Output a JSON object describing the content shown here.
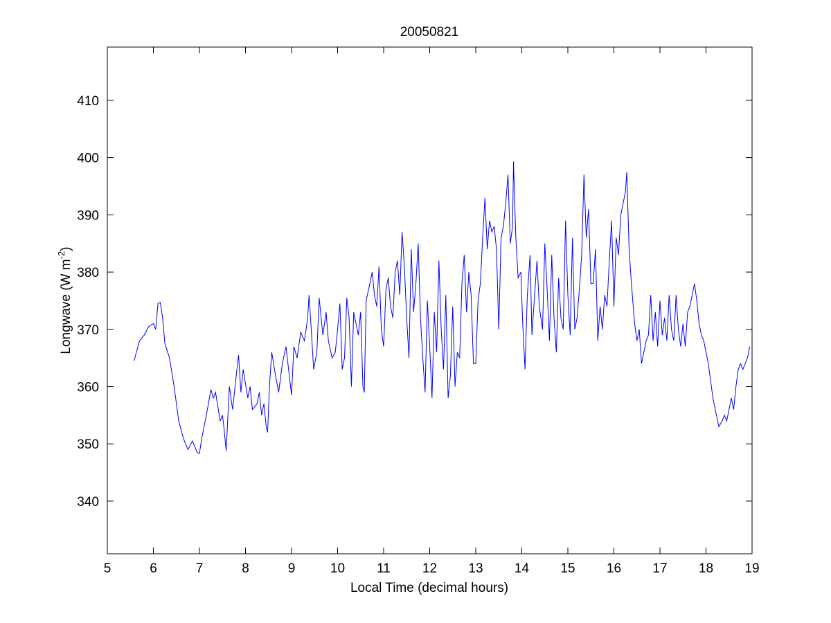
{
  "chart_data": {
    "type": "line",
    "title": "20050821",
    "xlabel": "Local Time (decimal hours)",
    "ylabel_parts": [
      "Longwave (W m",
      "-2",
      ")"
    ],
    "xlim": [
      5,
      19
    ],
    "xticks": [
      5,
      6,
      7,
      8,
      9,
      10,
      11,
      12,
      13,
      14,
      15,
      16,
      17,
      18,
      19
    ],
    "ylim": [
      330.8,
      419.3
    ],
    "yticks": [
      340,
      350,
      360,
      370,
      380,
      390,
      400,
      410
    ],
    "series": [
      {
        "name": "Longwave",
        "color": "#0000ff",
        "x": [
          5.58,
          5.7,
          5.8,
          5.9,
          6.0,
          6.05,
          6.1,
          6.15,
          6.2,
          6.25,
          6.35,
          6.45,
          6.55,
          6.65,
          6.75,
          6.85,
          6.95,
          7.0,
          7.05,
          7.15,
          7.25,
          7.3,
          7.35,
          7.45,
          7.5,
          7.53,
          7.58,
          7.65,
          7.72,
          7.8,
          7.85,
          7.9,
          7.95,
          8.05,
          8.1,
          8.15,
          8.25,
          8.3,
          8.35,
          8.4,
          8.45,
          8.48,
          8.52,
          8.57,
          8.65,
          8.72,
          8.8,
          8.88,
          8.95,
          9.0,
          9.05,
          9.12,
          9.2,
          9.28,
          9.35,
          9.38,
          9.42,
          9.48,
          9.55,
          9.6,
          9.68,
          9.75,
          9.8,
          9.88,
          9.95,
          10.0,
          10.05,
          10.1,
          10.15,
          10.2,
          10.25,
          10.3,
          10.35,
          10.4,
          10.45,
          10.5,
          10.55,
          10.58,
          10.62,
          10.7,
          10.75,
          10.8,
          10.85,
          10.9,
          10.95,
          11.0,
          11.05,
          11.1,
          11.15,
          11.2,
          11.25,
          11.3,
          11.35,
          11.4,
          11.45,
          11.5,
          11.55,
          11.6,
          11.65,
          11.7,
          11.75,
          11.8,
          11.85,
          11.9,
          11.95,
          12.0,
          12.05,
          12.1,
          12.15,
          12.2,
          12.25,
          12.3,
          12.35,
          12.4,
          12.45,
          12.5,
          12.55,
          12.6,
          12.65,
          12.7,
          12.75,
          12.8,
          12.85,
          12.9,
          12.95,
          13.0,
          13.05,
          13.1,
          13.15,
          13.2,
          13.25,
          13.3,
          13.35,
          13.4,
          13.45,
          13.5,
          13.55,
          13.6,
          13.65,
          13.7,
          13.75,
          13.8,
          13.82,
          13.87,
          13.92,
          13.98,
          14.02,
          14.07,
          14.12,
          14.18,
          14.22,
          14.27,
          14.33,
          14.38,
          14.45,
          14.5,
          14.55,
          14.6,
          14.65,
          14.7,
          14.75,
          14.8,
          14.85,
          14.9,
          14.95,
          15.0,
          15.05,
          15.1,
          15.15,
          15.2,
          15.25,
          15.3,
          15.35,
          15.4,
          15.45,
          15.5,
          15.55,
          15.6,
          15.65,
          15.7,
          15.75,
          15.8,
          15.85,
          15.9,
          15.95,
          16.0,
          16.05,
          16.1,
          16.15,
          16.2,
          16.25,
          16.28,
          16.33,
          16.38,
          16.45,
          16.5,
          16.55,
          16.6,
          16.65,
          16.7,
          16.75,
          16.8,
          16.85,
          16.9,
          16.95,
          17.0,
          17.05,
          17.1,
          17.15,
          17.2,
          17.25,
          17.3,
          17.35,
          17.4,
          17.45,
          17.5,
          17.55,
          17.6,
          17.65,
          17.7,
          17.75,
          17.8,
          17.85,
          17.9,
          17.95,
          18.0,
          18.05,
          18.1,
          18.15,
          18.2,
          18.28,
          18.35,
          18.4,
          18.45,
          18.5,
          18.55,
          18.6,
          18.65,
          18.7,
          18.75,
          18.8,
          18.85,
          18.9,
          18.95
        ],
        "values": [
          364.5,
          368,
          369,
          370.5,
          371,
          370,
          374.5,
          374.7,
          372,
          367.5,
          365,
          360,
          354,
          351,
          349,
          350.5,
          348.5,
          348.3,
          351,
          355,
          359.5,
          358,
          359,
          354,
          355,
          353,
          348.8,
          360,
          356,
          362,
          365.5,
          359,
          363,
          358,
          360,
          356,
          357,
          359,
          355,
          357,
          353,
          352,
          360,
          366,
          362,
          359,
          364,
          367,
          362,
          358.5,
          367,
          365,
          369.5,
          368,
          372,
          376,
          371,
          363,
          366,
          375.5,
          369,
          373,
          368,
          365,
          366,
          370,
          374.5,
          363,
          365,
          375.5,
          372,
          360,
          373,
          371,
          369,
          373,
          360,
          359,
          375,
          378,
          380,
          376,
          374,
          381,
          370,
          367,
          377,
          379,
          374,
          372,
          380,
          382,
          376,
          387,
          381,
          372,
          365,
          384,
          373,
          378,
          385,
          372,
          365,
          359,
          375,
          367,
          358,
          373,
          366,
          382,
          370,
          363,
          376,
          358,
          362,
          374,
          360,
          366,
          365,
          378,
          383,
          373,
          380,
          376,
          364,
          364,
          375,
          378,
          386,
          393,
          384,
          389,
          387,
          388,
          384,
          370,
          386,
          388,
          392,
          397,
          385,
          388,
          399.3,
          386,
          379,
          380,
          371,
          363,
          376,
          383,
          369,
          375,
          382,
          374,
          370,
          385,
          377,
          368,
          383,
          372,
          366,
          379,
          372,
          370,
          389,
          376,
          369,
          386,
          370,
          372,
          377,
          383,
          397,
          386,
          391,
          378,
          378,
          384,
          368,
          374,
          370,
          376,
          374,
          382,
          389,
          374,
          386,
          383,
          390,
          392,
          394,
          397.5,
          384,
          378,
          371,
          368,
          370,
          364,
          366,
          368,
          369,
          376,
          368,
          373,
          367,
          375,
          369,
          372,
          368,
          376,
          370,
          368,
          376,
          370,
          367,
          371,
          367,
          373,
          374,
          376,
          378,
          375,
          371,
          369,
          368,
          366,
          364,
          361,
          358,
          356,
          353,
          354,
          355,
          354,
          356,
          358,
          356,
          360,
          363,
          364,
          363,
          364,
          365,
          367
        ]
      }
    ]
  }
}
